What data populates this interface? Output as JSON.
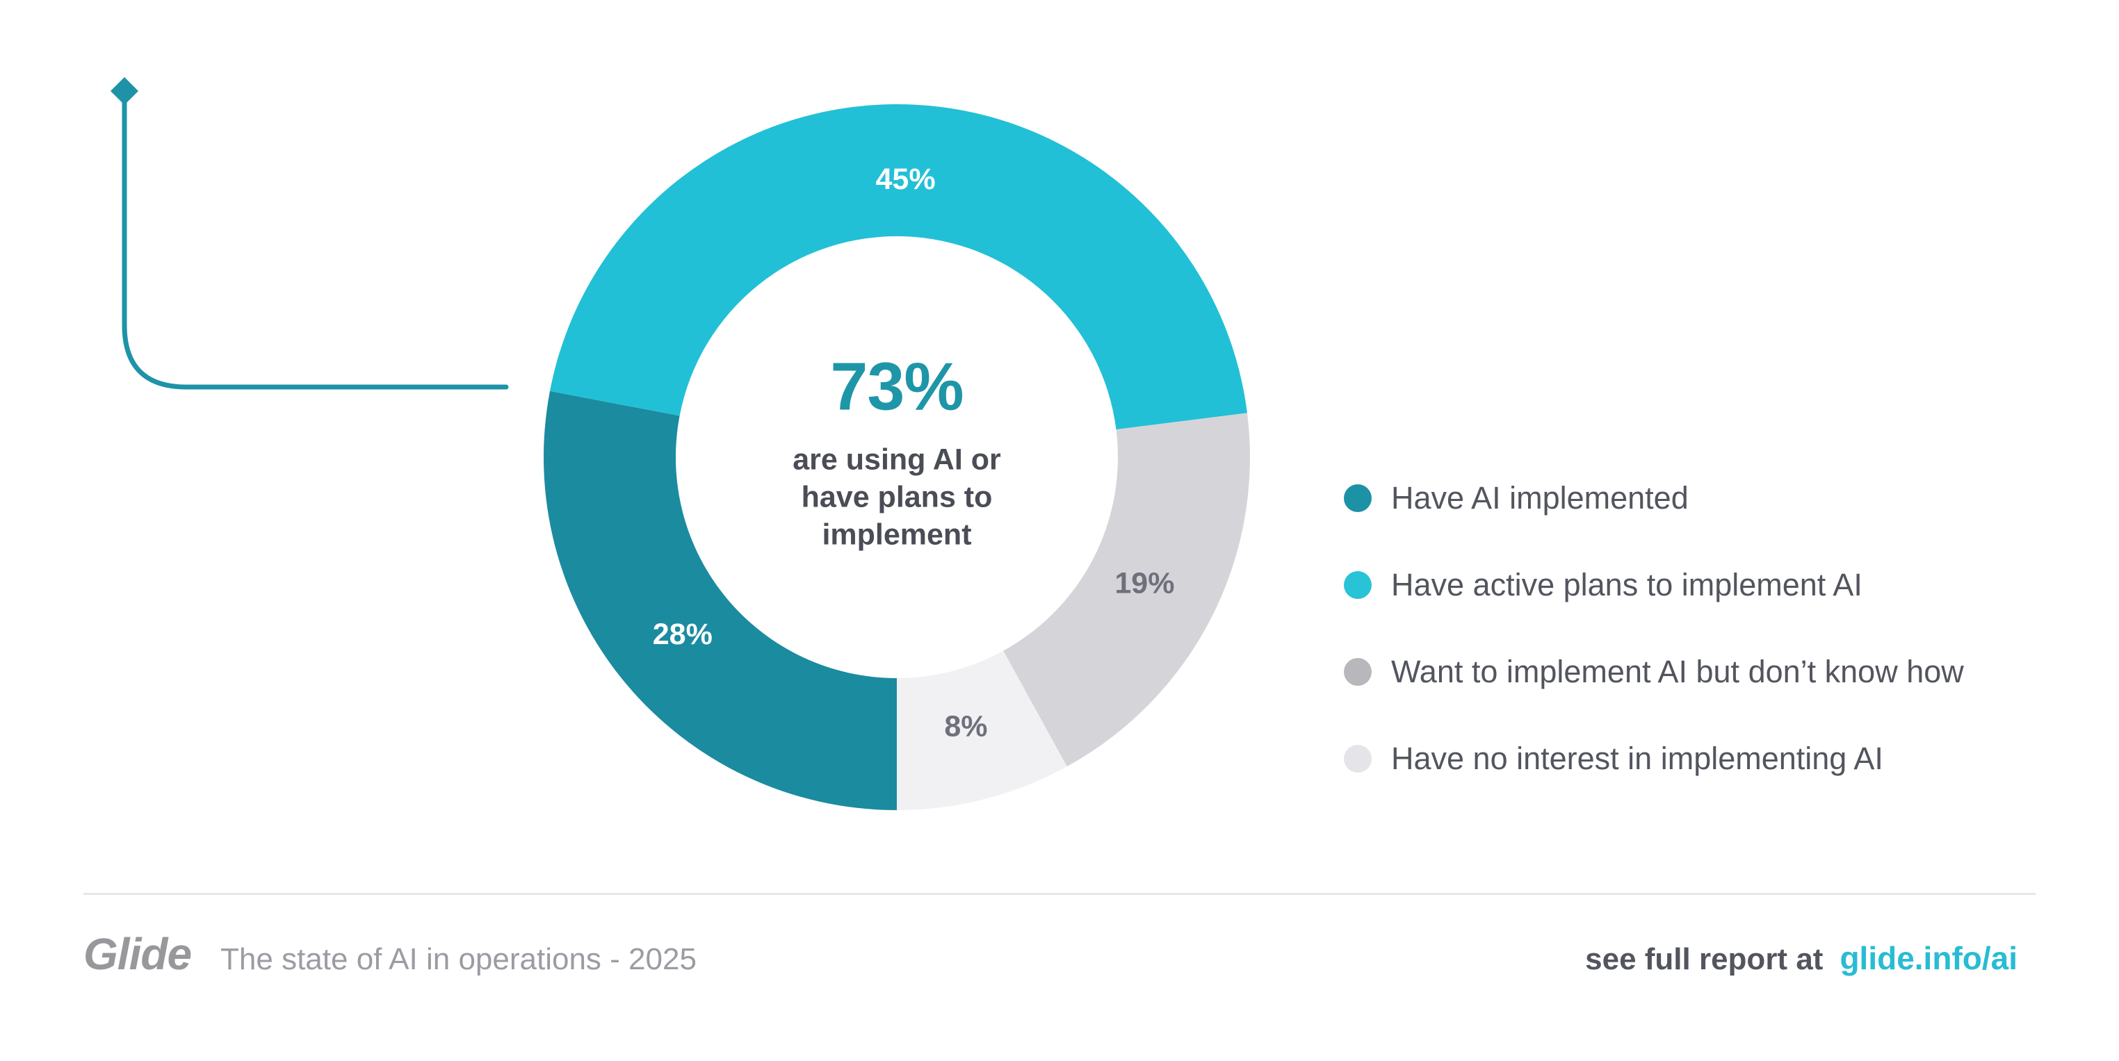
{
  "accent": {
    "color": "#1e93a8"
  },
  "chart_data": {
    "type": "donut",
    "total": 100,
    "direction": "clockwise",
    "start_angle_deg_from_top": 180,
    "legend_position": "right",
    "segments": [
      {
        "label": "Have AI implemented",
        "value": 28,
        "display": "28%",
        "color": "#1b8ba0",
        "label_color": "#ffffff"
      },
      {
        "label": "Have active plans to implement AI",
        "value": 45,
        "display": "45%",
        "color": "#22c0d6",
        "label_color": "#ffffff"
      },
      {
        "label": "Want to implement AI but don’t know how",
        "value": 19,
        "display": "19%",
        "color": "#d5d5d9",
        "label_color": "#6e717b"
      },
      {
        "label": "Have no interest in implementing AI",
        "value": 8,
        "display": "8%",
        "color": "#f1f1f4",
        "label_color": "#6e717b"
      }
    ],
    "center": {
      "value": "73%",
      "color": "#1e96a8",
      "lines": [
        "are using AI or",
        "have plans to",
        "implement"
      ]
    }
  },
  "legend": {
    "items": [
      {
        "label": "Have AI implemented",
        "dot_color": "#1d91a5"
      },
      {
        "label": "Have active plans to implement AI",
        "dot_color": "#29c3d7"
      },
      {
        "label": "Want to implement AI but don’t know how",
        "dot_color": "#b7b7bc"
      },
      {
        "label": "Have no interest in implementing AI",
        "dot_color": "#e5e5e9"
      }
    ]
  },
  "footer": {
    "logo": "Glide",
    "subtitle": "The state of AI in operations - 2025",
    "report_prefix": "see full report at",
    "report_link": "glide.info/ai",
    "link_color": "#28bcd4"
  }
}
